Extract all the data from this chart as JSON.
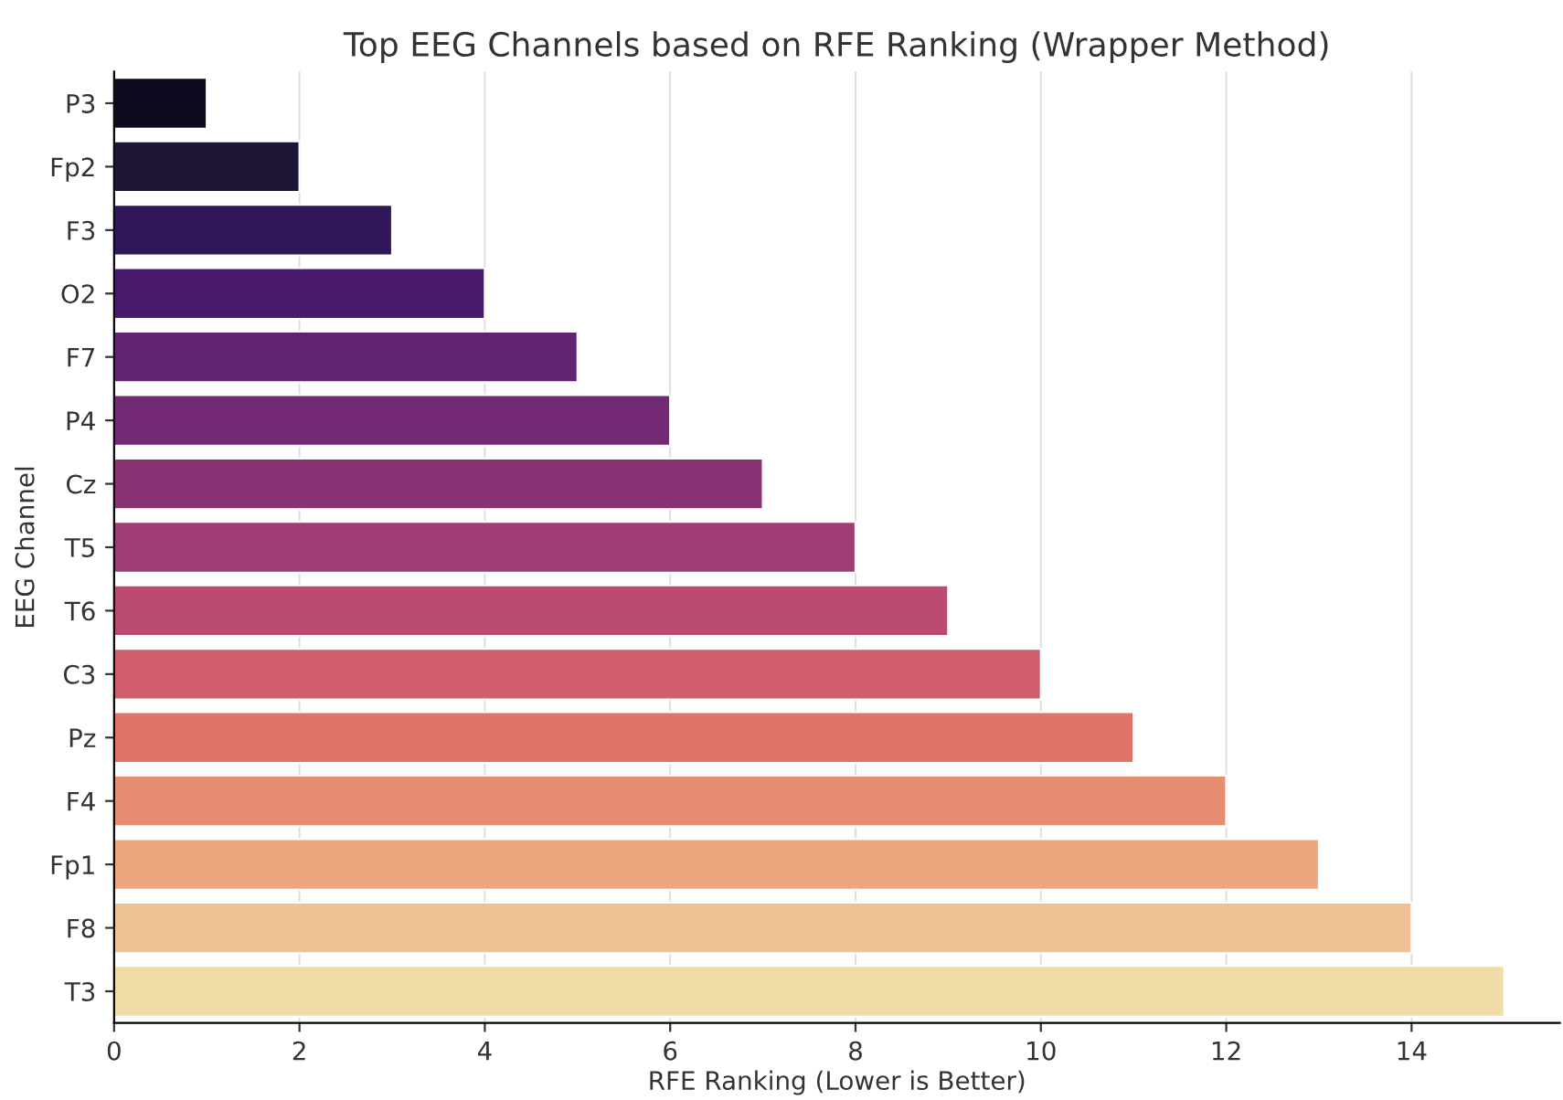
{
  "chart_data": {
    "type": "bar",
    "orientation": "horizontal",
    "title": "Top EEG Channels based on RFE Ranking (Wrapper Method)",
    "xlabel": "RFE Ranking (Lower is Better)",
    "ylabel": "EEG Channel",
    "categories": [
      "P3",
      "Fp2",
      "F3",
      "O2",
      "F7",
      "P4",
      "Cz",
      "T5",
      "T6",
      "C3",
      "Pz",
      "F4",
      "Fp1",
      "F8",
      "T3"
    ],
    "values": [
      1,
      2,
      3,
      4,
      5,
      6,
      7,
      8,
      9,
      10,
      11,
      12,
      13,
      14,
      15
    ],
    "colors": [
      "#0f0a1e",
      "#1f1537",
      "#32175a",
      "#4a1a6e",
      "#5f2372",
      "#732a74",
      "#8a3275",
      "#a13d74",
      "#ba4a72",
      "#d05e6c",
      "#e0746a",
      "#e78e72",
      "#eda77f",
      "#efc194",
      "#f1dca8"
    ],
    "xlim": [
      0,
      15.6
    ],
    "xticks": [
      0,
      2,
      4,
      6,
      8,
      10,
      12,
      14
    ],
    "grid": "x"
  }
}
